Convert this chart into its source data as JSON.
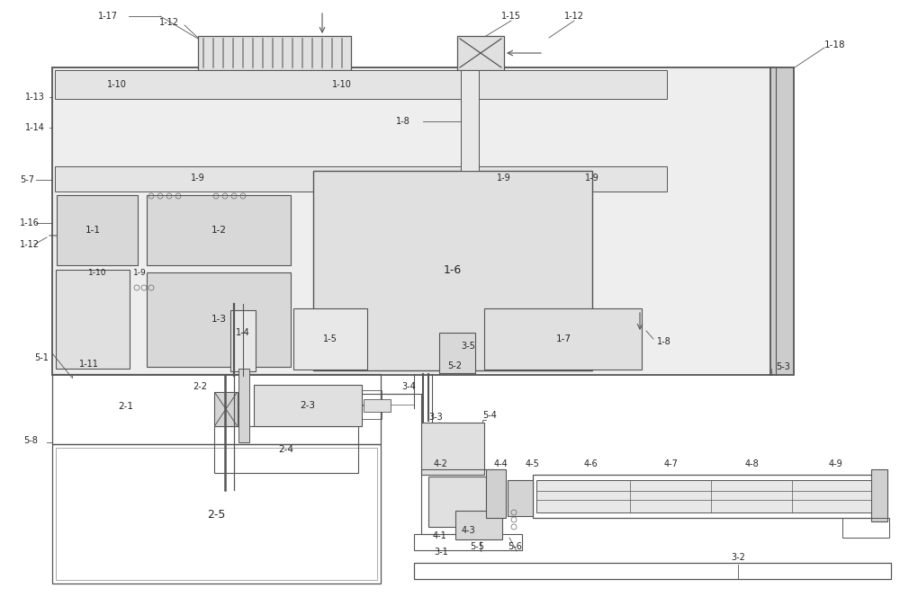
{
  "bg_color": "#ffffff",
  "lc": "#555555",
  "lc_dark": "#333333",
  "dot_color": "#bbbbbb",
  "figsize": [
    10.0,
    6.64
  ],
  "dpi": 100
}
